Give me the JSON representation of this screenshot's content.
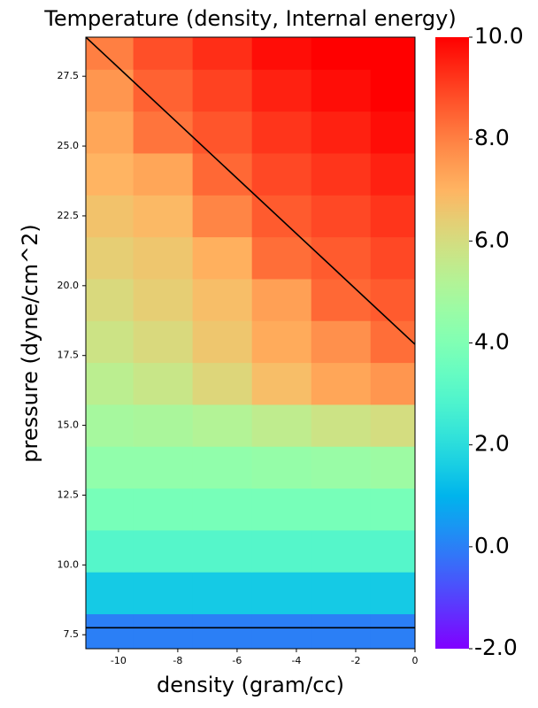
{
  "chart_data": {
    "type": "heatmap",
    "title": "Temperature (density, Internal energy)",
    "x_label": "density (gram/cc)",
    "y_label": "pressure (dyne/cm^2)",
    "colormap": "rainbow",
    "x": [
      -10.5,
      -8.5,
      -6.5,
      -4.5,
      -2.5,
      -0.5
    ],
    "y": [
      7.5,
      9,
      10.5,
      12,
      13.5,
      15,
      16.5,
      18,
      19.5,
      21,
      22.5,
      24,
      25.5,
      27,
      28.5
    ],
    "z": [
      [
        0,
        0,
        0,
        0,
        0,
        0
      ],
      [
        1.5,
        1.5,
        1.5,
        1.5,
        1.5,
        1.5
      ],
      [
        3.0,
        3.0,
        3.0,
        3.0,
        3.0,
        3.0
      ],
      [
        3.8,
        3.8,
        3.8,
        3.8,
        3.8,
        3.8
      ],
      [
        4.4,
        4.4,
        4.4,
        4.5,
        4.6,
        4.7
      ],
      [
        4.9,
        5.0,
        5.2,
        5.5,
        5.8,
        6.0
      ],
      [
        5.4,
        5.7,
        6.2,
        6.8,
        7.3,
        7.6
      ],
      [
        5.8,
        6.1,
        6.6,
        7.2,
        7.7,
        8.3
      ],
      [
        6.1,
        6.4,
        6.8,
        7.4,
        8.4,
        8.6
      ],
      [
        6.4,
        6.6,
        7.1,
        8.3,
        8.6,
        8.9
      ],
      [
        6.7,
        6.9,
        7.9,
        8.6,
        8.9,
        9.2
      ],
      [
        7.0,
        7.3,
        8.4,
        8.9,
        9.2,
        9.5
      ],
      [
        7.3,
        8.2,
        8.7,
        9.2,
        9.5,
        9.8
      ],
      [
        7.6,
        8.5,
        9.0,
        9.5,
        9.8,
        10
      ],
      [
        8.0,
        8.8,
        9.3,
        9.8,
        10,
        10
      ]
    ],
    "xlim": [
      -11.1,
      0
    ],
    "ylim": [
      7.0,
      28.9
    ],
    "xticks": [
      -10,
      -8,
      -6,
      -4,
      -2,
      0
    ],
    "yticks": [
      7.5,
      {
        "value": 10,
        "label": "10.0"
      },
      12.5,
      {
        "value": 15,
        "label": "15.0"
      },
      17.5,
      {
        "value": 20,
        "label": "20.0"
      },
      22.5,
      {
        "value": 25,
        "label": "25.0"
      },
      27.5
    ],
    "clim": [
      -2,
      10
    ],
    "cticks": [
      {
        "value": -2,
        "label": "-2.0"
      },
      {
        "value": 0,
        "label": "0.0"
      },
      {
        "value": 2,
        "label": "2.0"
      },
      {
        "value": 4,
        "label": "4.0"
      },
      {
        "value": 6,
        "label": "6.0"
      },
      {
        "value": 8,
        "label": "8.0"
      },
      {
        "value": 10,
        "label": "10.0"
      }
    ],
    "lines": [
      {
        "x": [
          -11.1,
          0
        ],
        "y": [
          28.9,
          17.9
        ],
        "color": "#000000"
      },
      {
        "x": [
          -11.1,
          0
        ],
        "y": [
          7.75,
          7.75
        ],
        "color": "#000000"
      }
    ]
  }
}
